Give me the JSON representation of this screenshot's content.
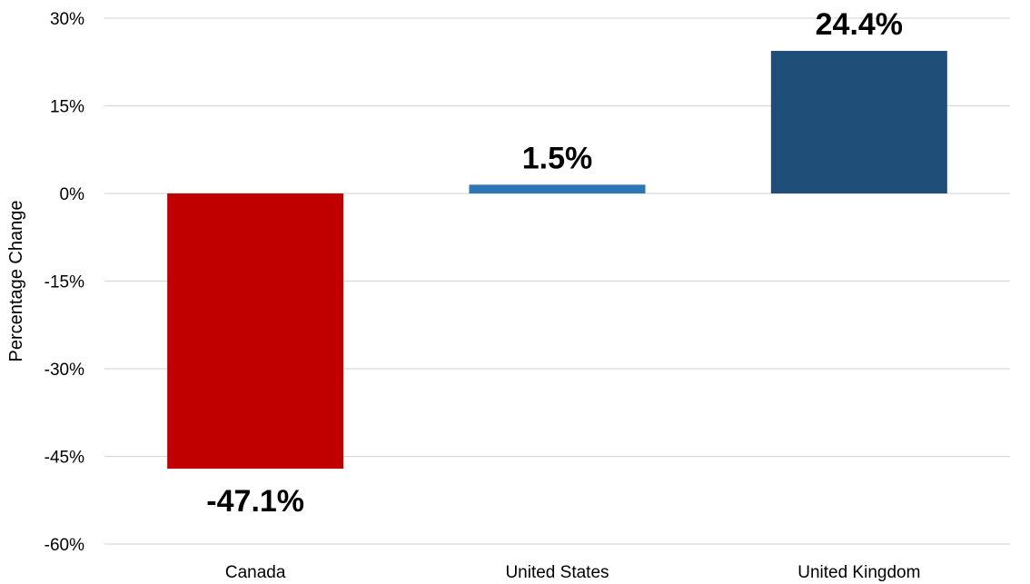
{
  "chart_data": {
    "type": "bar",
    "title": "",
    "xlabel": "",
    "ylabel": "Percentage Change",
    "categories": [
      "Canada",
      "United States",
      "United Kingdom"
    ],
    "values": [
      -47.1,
      1.5,
      24.4
    ],
    "data_labels": [
      "-47.1%",
      "1.5%",
      "24.4%"
    ],
    "bar_colors": [
      "#c00000",
      "#2e75b6",
      "#1f4e79"
    ],
    "ylim": [
      -60,
      30
    ],
    "yticks": [
      30,
      15,
      0,
      -15,
      -30,
      -45,
      -60
    ],
    "ytick_labels": [
      "30%",
      "15%",
      "0%",
      "-15%",
      "-30%",
      "-45%",
      "-60%"
    ],
    "grid": true,
    "legend": false
  }
}
